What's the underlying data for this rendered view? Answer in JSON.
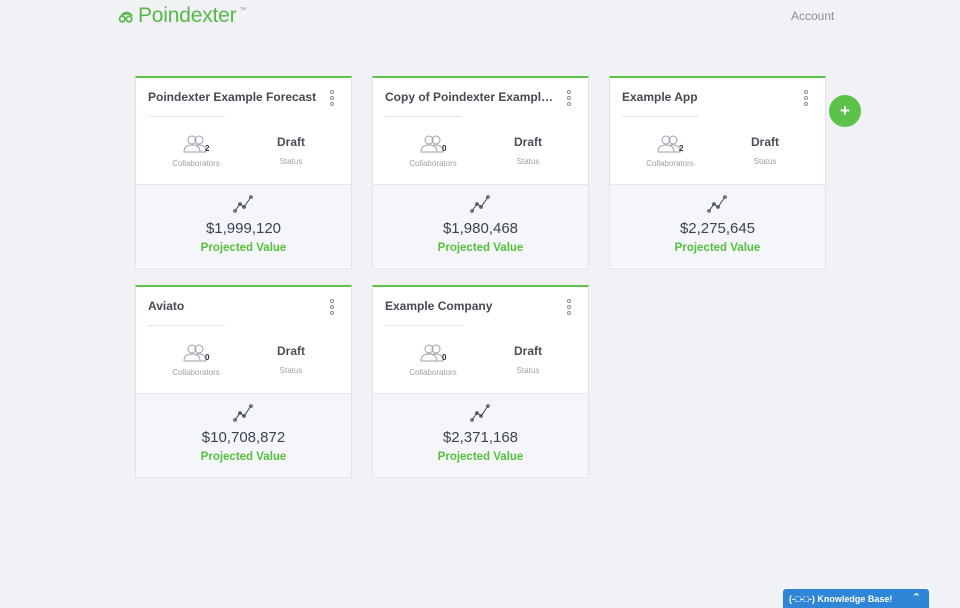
{
  "header": {
    "brand": "Poindexter",
    "brand_tm": "™",
    "account_label": "Account"
  },
  "cards": [
    {
      "title": "Poindexter Example Forecast",
      "collaborator_count": "2",
      "collaborators_label": "Collaborators",
      "status_value": "Draft",
      "status_label": "Status",
      "projected_value": "$1,999,120",
      "projected_label": "Projected Value"
    },
    {
      "title": "Copy of Poindexter Example ...",
      "collaborator_count": "0",
      "collaborators_label": "Collaborators",
      "status_value": "Draft",
      "status_label": "Status",
      "projected_value": "$1,980,468",
      "projected_label": "Projected Value"
    },
    {
      "title": "Example App",
      "collaborator_count": "2",
      "collaborators_label": "Collaborators",
      "status_value": "Draft",
      "status_label": "Status",
      "projected_value": "$2,275,645",
      "projected_label": "Projected Value"
    },
    {
      "title": "Aviato",
      "collaborator_count": "0",
      "collaborators_label": "Collaborators",
      "status_value": "Draft",
      "status_label": "Status",
      "projected_value": "$10,708,872",
      "projected_label": "Projected Value"
    },
    {
      "title": "Example Company",
      "collaborator_count": "0",
      "collaborators_label": "Collaborators",
      "status_value": "Draft",
      "status_label": "Status",
      "projected_value": "$2,371,168",
      "projected_label": "Projected Value"
    }
  ],
  "add_button": {
    "symbol": "+"
  },
  "knowledge_base": {
    "label": "(-□-□-) Knowledge Base!",
    "chevron": "⌃"
  },
  "colors": {
    "accent": "#5cc24a",
    "kb_tab": "#2f86d6",
    "background": "#f1f2f6"
  }
}
